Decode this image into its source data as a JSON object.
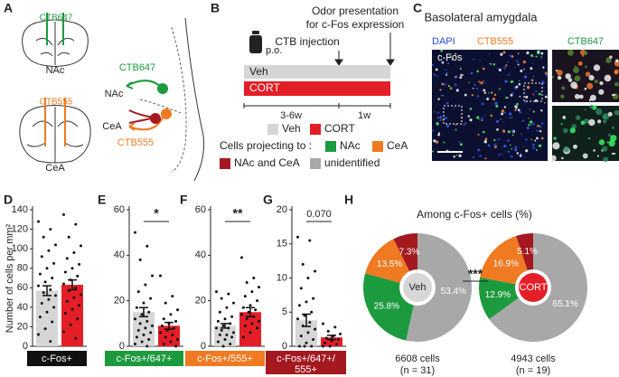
{
  "panel_labels": [
    "A",
    "B",
    "C",
    "D",
    "E",
    "F",
    "G",
    "H"
  ],
  "panel_a": {
    "top_tracer": "CTB647",
    "top_region": "NAc",
    "bottom_tracer": "CTB555",
    "bottom_region": "CeA",
    "schematic": {
      "tracer_1": "CTB647",
      "region_1": "NAc",
      "region_2": "CeA",
      "tracer_2": "CTB555"
    }
  },
  "panel_b": {
    "route": "p.o.",
    "event_1": "CTB injection",
    "event_2": [
      "Odor presentation",
      "for c-Fos expression"
    ],
    "groups": [
      {
        "label": "Veh",
        "color": "#d6d6d6"
      },
      {
        "label": "CORT",
        "color": "#e41e26"
      }
    ],
    "durations": [
      "3-6w",
      "1w"
    ],
    "legend_title": "Cells projecting to :",
    "projections": [
      {
        "label": "NAc",
        "color": "#1c9a3e"
      },
      {
        "label": "CeA",
        "color": "#f07a22"
      },
      {
        "label": "NAc and CeA",
        "color": "#a3191f"
      },
      {
        "label": "unidentified",
        "color": "#a8a8a8"
      }
    ]
  },
  "panel_c": {
    "title": "Basolateral amygdala",
    "channels": [
      "DAPI",
      "CTB555",
      "CTB647",
      "c-Fos"
    ]
  },
  "chart_data": [
    {
      "type": "bar",
      "y_label": "Number of cells per mm²",
      "ylim": [
        0,
        140
      ],
      "yticks": [
        0,
        20,
        40,
        60,
        80,
        100,
        120,
        140
      ],
      "values": [
        57,
        63
      ],
      "errors": [
        5,
        5
      ],
      "colors": [
        "#d6d6d6",
        "#e41e26"
      ],
      "points": [
        [
          128,
          120,
          112,
          104,
          98,
          92,
          85,
          80,
          74,
          70,
          66,
          62,
          58,
          55,
          52,
          48,
          44,
          40,
          35,
          30,
          25,
          18,
          12,
          5
        ],
        [
          135,
          125,
          112,
          103,
          96,
          90,
          84,
          80,
          76,
          72,
          68,
          64,
          60,
          57,
          53,
          50,
          46,
          42,
          38,
          34,
          28,
          22,
          15,
          8
        ]
      ],
      "x_label": [
        "c-Fos+"
      ],
      "x_label_color": "#111111"
    },
    {
      "type": "bar",
      "ylim": [
        0,
        60
      ],
      "yticks": [
        0,
        20,
        40,
        60
      ],
      "values": [
        15,
        9
      ],
      "errors": [
        2,
        1.5
      ],
      "colors": [
        "#d6d6d6",
        "#e41e26"
      ],
      "points": [
        [
          50,
          44,
          38,
          31,
          27,
          24,
          21,
          19,
          17,
          15,
          14,
          12,
          11,
          10,
          9,
          8,
          7,
          6,
          5,
          4,
          3,
          2,
          1,
          0
        ],
        [
          31,
          22,
          19,
          16,
          14,
          12,
          11,
          10,
          9,
          8,
          7,
          6,
          5,
          4,
          3,
          2,
          1,
          0
        ]
      ],
      "x_label": [
        "c-Fos+/647+"
      ],
      "x_label_color": "#1c9a3e",
      "significance": "*"
    },
    {
      "type": "bar",
      "ylim": [
        0,
        60
      ],
      "yticks": [
        0,
        20,
        40,
        60
      ],
      "values": [
        9,
        15
      ],
      "errors": [
        1,
        2
      ],
      "colors": [
        "#d6d6d6",
        "#e41e26"
      ],
      "points": [
        [
          24,
          23,
          21,
          19,
          17,
          15,
          13,
          12,
          11,
          10,
          9,
          8,
          8,
          7,
          6,
          5,
          5,
          4,
          3,
          2,
          1,
          0
        ],
        [
          39,
          30,
          28,
          26,
          24,
          22,
          20,
          18,
          17,
          16,
          15,
          14,
          13,
          12,
          11,
          10,
          9,
          8,
          6,
          4
        ]
      ],
      "x_label": [
        "c-Fos+/555+"
      ],
      "x_label_color": "#f07a22",
      "significance": "**"
    },
    {
      "type": "bar",
      "ylim": [
        0,
        20
      ],
      "yticks": [
        0,
        5,
        10,
        15,
        20
      ],
      "values": [
        3.8,
        1.3
      ],
      "errors": [
        0.9,
        0.3
      ],
      "colors": [
        "#d6d6d6",
        "#e41e26"
      ],
      "points": [
        [
          16,
          15.5,
          12,
          11,
          10,
          8.5,
          7,
          6.5,
          6,
          5,
          4.5,
          4,
          3.5,
          3,
          2.5,
          2,
          1.5,
          1,
          0.5,
          0,
          0,
          0
        ],
        [
          3.3,
          2.8,
          2.2,
          1.8,
          1.5,
          1.2,
          1,
          0.8,
          0.5,
          0.3,
          0,
          0
        ]
      ],
      "x_label": [
        "c-Fos+/647+/",
        "555+"
      ],
      "x_label_color": "#a3191f",
      "significance": "0.070"
    },
    {
      "type": "donut",
      "title": "Among c-Fos+ cells (%)",
      "significance": "***",
      "charts": [
        {
          "center": "Veh",
          "center_color": "#d6d6d6",
          "values": [
            53.4,
            25.8,
            13.5,
            7.3
          ],
          "value_labels": [
            "53.4%",
            "25.8%",
            "13.5%",
            "7.3%"
          ],
          "colors": [
            "#a8a8a8",
            "#1c9a3e",
            "#f07a22",
            "#a3191f"
          ],
          "footer": [
            "6608 cells",
            "(n = 31)"
          ]
        },
        {
          "center": "CORT",
          "center_color": "#e41e26",
          "values": [
            65.1,
            12.9,
            16.9,
            5.1
          ],
          "value_labels": [
            "65.1%",
            "12.9%",
            "16.9%",
            "5.1%"
          ],
          "colors": [
            "#a8a8a8",
            "#1c9a3e",
            "#f07a22",
            "#a3191f"
          ],
          "footer": [
            "4943 cells",
            "(n = 19)"
          ]
        }
      ]
    }
  ]
}
